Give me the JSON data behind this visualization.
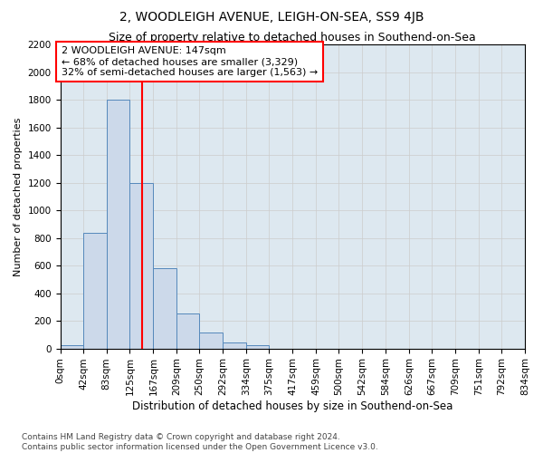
{
  "title": "2, WOODLEIGH AVENUE, LEIGH-ON-SEA, SS9 4JB",
  "subtitle": "Size of property relative to detached houses in Southend-on-Sea",
  "xlabel": "Distribution of detached houses by size in Southend-on-Sea",
  "ylabel": "Number of detached properties",
  "bin_edges": [
    0,
    42,
    83,
    125,
    167,
    209,
    250,
    292,
    334,
    375,
    417,
    459,
    500,
    542,
    584,
    626,
    667,
    709,
    751,
    792,
    834
  ],
  "bar_heights": [
    25,
    840,
    1800,
    1200,
    580,
    255,
    115,
    40,
    25,
    0,
    0,
    0,
    0,
    0,
    0,
    0,
    0,
    0,
    0,
    0
  ],
  "bar_facecolor": "#ccd9ea",
  "bar_edgecolor": "#5588bb",
  "grid_color": "#cccccc",
  "background_color": "#dde8f0",
  "vline_x": 147,
  "vline_color": "red",
  "annotation_text": "2 WOODLEIGH AVENUE: 147sqm\n← 68% of detached houses are smaller (3,329)\n32% of semi-detached houses are larger (1,563) →",
  "annotation_box_facecolor": "white",
  "annotation_box_edgecolor": "red",
  "ylim": [
    0,
    2200
  ],
  "yticks": [
    0,
    200,
    400,
    600,
    800,
    1000,
    1200,
    1400,
    1600,
    1800,
    2000,
    2200
  ],
  "footnote": "Contains HM Land Registry data © Crown copyright and database right 2024.\nContains public sector information licensed under the Open Government Licence v3.0.",
  "title_fontsize": 10,
  "subtitle_fontsize": 9,
  "xlabel_fontsize": 8.5,
  "ylabel_fontsize": 8,
  "tick_fontsize": 7.5,
  "annotation_fontsize": 8,
  "footnote_fontsize": 6.5
}
